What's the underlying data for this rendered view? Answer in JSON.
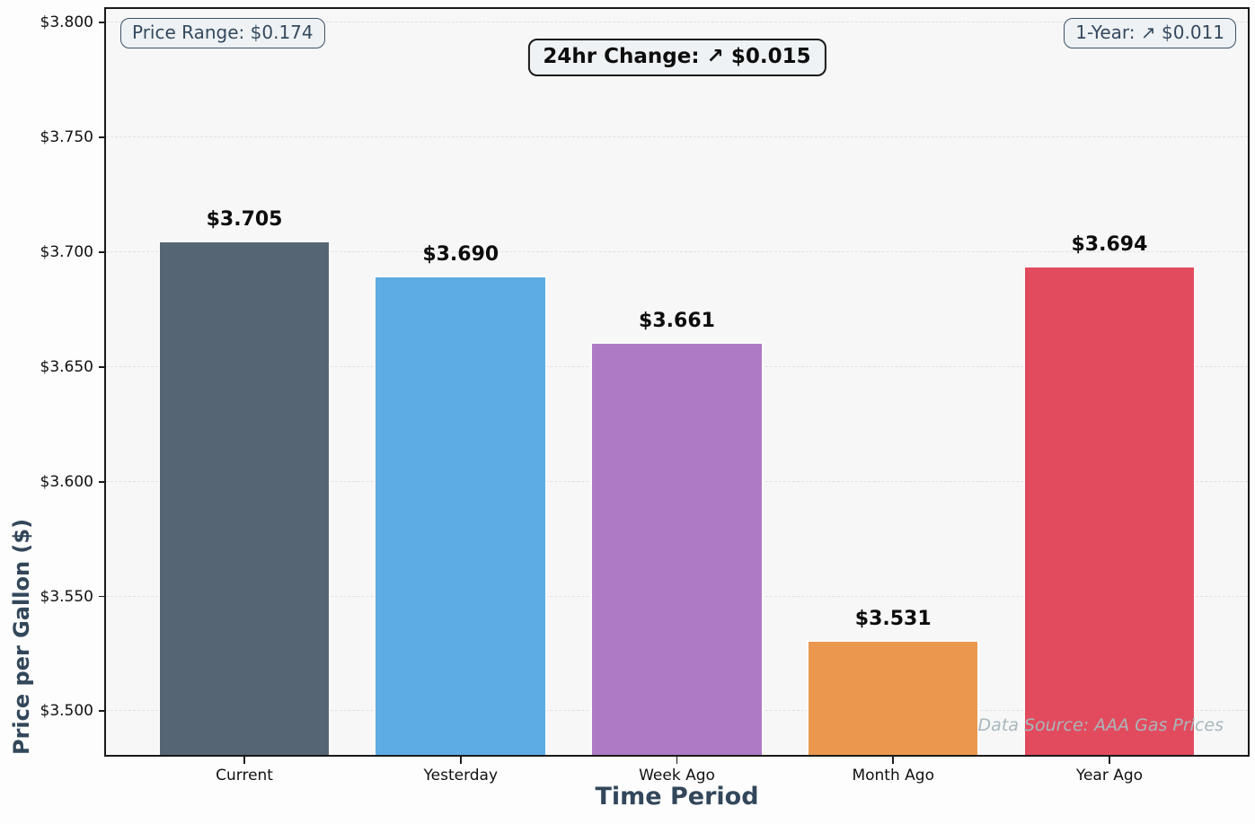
{
  "chart_data": {
    "type": "bar",
    "title": "",
    "categories": [
      "Current",
      "Yesterday",
      "Week Ago",
      "Month Ago",
      "Year Ago"
    ],
    "values": [
      3.705,
      3.69,
      3.661,
      3.531,
      3.694
    ],
    "value_labels": [
      "$3.705",
      "$3.690",
      "$3.661",
      "$3.531",
      "$3.694"
    ],
    "bar_colors": [
      "#566573",
      "#5DADE2",
      "#AF7AC5",
      "#EB984E",
      "#E24B5E"
    ],
    "xlabel": "Time Period",
    "ylabel": "Price per Gallon ($)",
    "ylim": [
      3.481,
      3.806
    ],
    "xlim": [
      -0.64,
      4.64
    ],
    "bar_width": 0.8,
    "yticks": [
      3.5,
      3.55,
      3.6,
      3.65,
      3.7,
      3.75,
      3.8
    ],
    "ytick_labels": [
      "$3.500",
      "$3.550",
      "$3.600",
      "$3.650",
      "$3.700",
      "$3.750",
      "$3.800"
    ],
    "grid": "horizontal dashed",
    "legend": "none",
    "annotations": [
      {
        "id": "price-range",
        "text": "Price Range: $0.174",
        "position": "top-left"
      },
      {
        "id": "change-24hr",
        "text": "24hr Change: ↗ $0.015",
        "position": "top-center"
      },
      {
        "id": "change-1-year",
        "text": "1-Year: ↗ $0.011",
        "position": "top-right"
      },
      {
        "id": "data-source",
        "text": "Data Source: AAA Gas Prices",
        "position": "bottom-right"
      }
    ]
  },
  "colors": {
    "axis_title": "#33475b",
    "tick_label": "#111111",
    "annotation_text": "#34495e",
    "annotation_bg": "#eef2f4",
    "spine": "#1a1a1a",
    "plot_bg": "#f7f7f8",
    "figure_bg": "#fdfdfd",
    "gridline": "#e1e1e4",
    "bar_edge": "#fafafa",
    "source_text": "#a9b7bb"
  }
}
